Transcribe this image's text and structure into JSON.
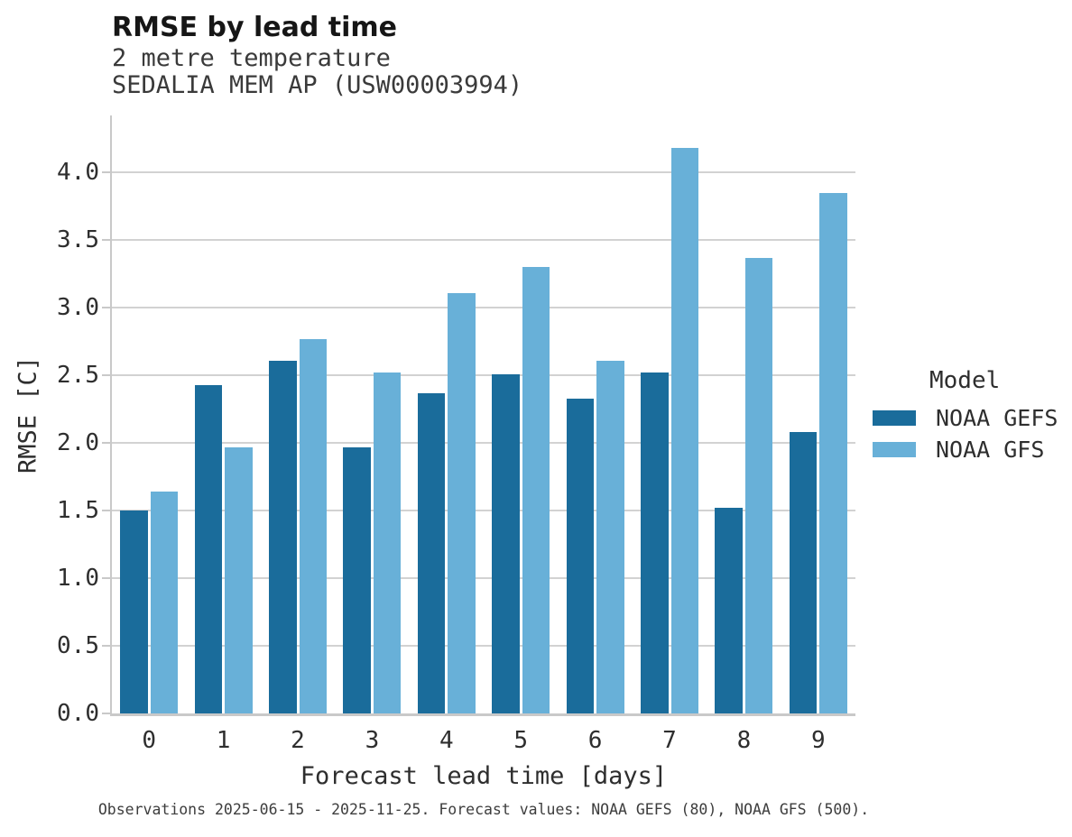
{
  "header": {
    "title": "RMSE by lead time",
    "subtitle_line1": "2 metre temperature",
    "subtitle_line2": "SEDALIA MEM AP (USW00003994)"
  },
  "footnote": "Observations 2025-06-15 - 2025-11-25. Forecast values: NOAA GEFS (80), NOAA GFS (500).",
  "chart_data": {
    "type": "bar",
    "title": "RMSE by lead time",
    "subtitle": [
      "2 metre temperature",
      "SEDALIA MEM AP (USW00003994)"
    ],
    "xlabel": "Forecast lead time [days]",
    "ylabel": "RMSE [C]",
    "categories": [
      "0",
      "1",
      "2",
      "3",
      "4",
      "5",
      "6",
      "7",
      "8",
      "9"
    ],
    "series": [
      {
        "name": "NOAA GEFS",
        "color": "#1a6c9b",
        "values": [
          1.5,
          2.43,
          2.61,
          1.97,
          2.37,
          2.51,
          2.33,
          2.52,
          1.52,
          2.08
        ]
      },
      {
        "name": "NOAA GFS",
        "color": "#68b0d8",
        "values": [
          1.64,
          1.97,
          2.77,
          2.52,
          3.11,
          3.3,
          2.61,
          4.18,
          3.37,
          3.85
        ]
      }
    ],
    "ylim": [
      0,
      4.42
    ],
    "ytick_values": [
      0,
      0.5,
      1,
      1.5,
      2,
      2.5,
      3,
      3.5,
      4
    ],
    "ytick_labels": [
      "0.0",
      "0.5",
      "1.0",
      "1.5",
      "2.0",
      "2.5",
      "3.0",
      "3.5",
      "4.0"
    ],
    "grid": true,
    "grid_color": "#d2d2d2",
    "legend": {
      "title": "Model",
      "position": "right"
    },
    "footnote": "Observations 2025-06-15 - 2025-11-25. Forecast values: NOAA GEFS (80), NOAA GFS (500)."
  }
}
